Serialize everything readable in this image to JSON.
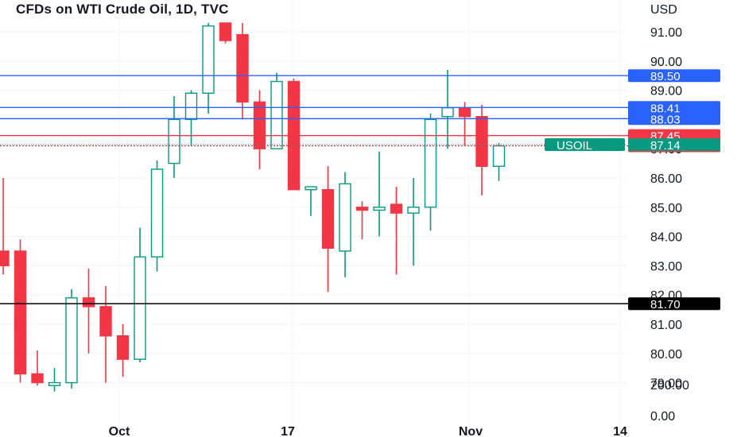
{
  "chart_data": {
    "type": "candlestick",
    "title": "CFDs on WTI Crude Oil, 1D, TVC",
    "currency_label": "USD",
    "y_ticks": [
      "91.00",
      "90.00",
      "89.00",
      "88.00",
      "87.00",
      "86.00",
      "85.00",
      "84.00",
      "83.00",
      "82.00",
      "81.00",
      "80.00",
      "79.00"
    ],
    "x_ticks": [
      "Oct",
      "17",
      "Nov",
      "14"
    ],
    "lower_scale_labels": [
      "200.00",
      "0.00"
    ],
    "grid": true,
    "colors": {
      "up": "#089981",
      "down": "#f23645",
      "level_blue": "#2962ff",
      "level_red": "#f23645",
      "level_black": "#000000",
      "grid": "#f0f3fa",
      "ticker": "#089981"
    },
    "candles": [
      {
        "o": 83.5,
        "h": 86.0,
        "l": 82.7,
        "c": 83.0
      },
      {
        "o": 83.5,
        "h": 83.9,
        "l": 79.0,
        "c": 79.3
      },
      {
        "o": 79.3,
        "h": 80.1,
        "l": 78.9,
        "c": 79.0
      },
      {
        "o": 78.9,
        "h": 79.5,
        "l": 78.7,
        "c": 79.0
      },
      {
        "o": 79.0,
        "h": 82.2,
        "l": 78.8,
        "c": 81.9
      },
      {
        "o": 81.9,
        "h": 82.9,
        "l": 80.0,
        "c": 81.6
      },
      {
        "o": 81.6,
        "h": 82.3,
        "l": 79.0,
        "c": 80.6
      },
      {
        "o": 80.6,
        "h": 81.0,
        "l": 79.2,
        "c": 79.8
      },
      {
        "o": 79.8,
        "h": 84.3,
        "l": 79.7,
        "c": 83.3
      },
      {
        "o": 83.3,
        "h": 86.6,
        "l": 82.8,
        "c": 86.3
      },
      {
        "o": 86.5,
        "h": 88.8,
        "l": 86.0,
        "c": 88.0
      },
      {
        "o": 88.0,
        "h": 89.0,
        "l": 87.1,
        "c": 88.9
      },
      {
        "o": 88.9,
        "h": 91.3,
        "l": 88.2,
        "c": 91.2
      },
      {
        "o": 91.3,
        "h": 91.3,
        "l": 90.6,
        "c": 90.7
      },
      {
        "o": 90.9,
        "h": 91.3,
        "l": 88.0,
        "c": 88.6
      },
      {
        "o": 88.6,
        "h": 89.0,
        "l": 86.3,
        "c": 87.0
      },
      {
        "o": 87.0,
        "h": 89.6,
        "l": 87.0,
        "c": 89.3
      },
      {
        "o": 89.3,
        "h": 89.4,
        "l": 85.6,
        "c": 85.6
      },
      {
        "o": 85.6,
        "h": 85.7,
        "l": 84.7,
        "c": 85.7
      },
      {
        "o": 85.6,
        "h": 86.4,
        "l": 82.1,
        "c": 83.6
      },
      {
        "o": 83.5,
        "h": 86.2,
        "l": 82.6,
        "c": 85.8
      },
      {
        "o": 85.0,
        "h": 85.2,
        "l": 83.9,
        "c": 84.9
      },
      {
        "o": 84.9,
        "h": 86.9,
        "l": 84.0,
        "c": 85.0
      },
      {
        "o": 85.1,
        "h": 85.7,
        "l": 82.7,
        "c": 84.8
      },
      {
        "o": 84.8,
        "h": 86.0,
        "l": 83.0,
        "c": 85.0
      },
      {
        "o": 85.0,
        "h": 88.2,
        "l": 84.2,
        "c": 88.0
      },
      {
        "o": 88.1,
        "h": 89.7,
        "l": 87.0,
        "c": 88.4
      },
      {
        "o": 88.4,
        "h": 88.6,
        "l": 87.1,
        "c": 88.1
      },
      {
        "o": 88.1,
        "h": 88.5,
        "l": 85.4,
        "c": 86.4
      },
      {
        "o": 86.4,
        "h": 87.2,
        "l": 85.9,
        "c": 87.1
      }
    ],
    "levels": [
      {
        "value": 89.5,
        "label": "89.50",
        "color": "#2962ff",
        "style": "solid"
      },
      {
        "value": 88.41,
        "label": "88.41",
        "color": "#2962ff",
        "style": "solid"
      },
      {
        "value": 88.03,
        "label": "88.03",
        "color": "#2962ff",
        "style": "solid"
      },
      {
        "value": 87.45,
        "label": "87.45",
        "color": "#f23645",
        "style": "solid"
      },
      {
        "value": 87.1,
        "label": "87.10",
        "color": "#f23645",
        "style": "dotted"
      },
      {
        "value": 81.7,
        "label": "81.70",
        "color": "#000000",
        "style": "solid"
      }
    ],
    "ticker": {
      "symbol": "USOIL",
      "value": 87.14,
      "label": "87.14"
    }
  }
}
